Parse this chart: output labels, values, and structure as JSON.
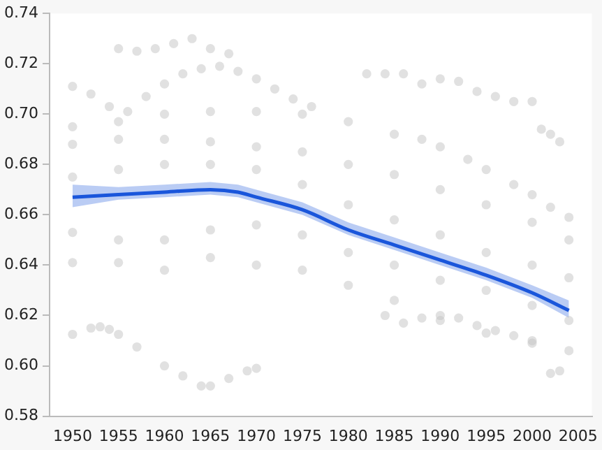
{
  "chart_data": {
    "type": "scatter",
    "xlim": [
      1947.5,
      2006.5
    ],
    "xticks": [
      1950,
      1955,
      1960,
      1965,
      1970,
      1975,
      1980,
      1985,
      1990,
      1995,
      2000,
      2005
    ],
    "ylim": [
      0.58,
      0.74
    ],
    "yticks": [
      0.58,
      {
        "value": 0.6,
        "label": "0.60"
      },
      0.62,
      0.64,
      0.66,
      0.68,
      {
        "value": 0.7,
        "label": "0.70"
      },
      0.72,
      0.74
    ],
    "series": [
      {
        "type": "scatter",
        "color": "#c4c4c4",
        "x": [
          1950,
          1952,
          1954,
          1956,
          1958,
          1960,
          1962,
          1964,
          1966,
          1968,
          1970,
          1972,
          1974,
          1976,
          1955,
          1957,
          1959,
          1961,
          1963,
          1965,
          1967,
          1982,
          1984,
          1986,
          1988,
          1990,
          1992,
          1994,
          1996,
          1998,
          2000,
          2001,
          2002,
          2003,
          1950,
          1955,
          1960,
          1965,
          1970,
          1975,
          1980,
          1985,
          1988,
          1990,
          1993,
          1995,
          1998,
          2000,
          2002,
          2004,
          1950,
          1955,
          1960,
          1965,
          1970,
          1975,
          1980,
          1985,
          1990,
          1995,
          2000,
          2004,
          1950,
          1955,
          1960,
          1965,
          1970,
          1975,
          1980,
          1985,
          1990,
          1995,
          2000,
          2004,
          1950,
          1955,
          1960,
          1965,
          1970,
          1975,
          1980,
          1985,
          1990,
          1995,
          2000,
          2004,
          1950,
          1955,
          1960,
          1965,
          1970,
          1975,
          1980,
          1985,
          1990,
          1995,
          2000,
          2004,
          1984,
          1986,
          1988,
          1990,
          1992,
          1994,
          1996,
          1998,
          2000,
          2002,
          2003,
          1950,
          1952,
          1953,
          1954,
          1955,
          1957,
          1960,
          1962,
          1964,
          1965,
          1967,
          1969,
          1970
        ],
        "values": [
          0.711,
          0.708,
          0.703,
          0.701,
          0.707,
          0.712,
          0.716,
          0.718,
          0.719,
          0.717,
          0.714,
          0.71,
          0.706,
          0.703,
          0.726,
          0.725,
          0.726,
          0.728,
          0.73,
          0.726,
          0.724,
          0.716,
          0.716,
          0.716,
          0.712,
          0.714,
          0.713,
          0.709,
          0.707,
          0.705,
          0.705,
          0.694,
          0.692,
          0.689,
          0.695,
          0.697,
          0.7,
          0.701,
          0.701,
          0.7,
          0.697,
          0.692,
          0.69,
          0.687,
          0.682,
          0.678,
          0.672,
          0.668,
          0.663,
          0.659,
          0.688,
          0.69,
          0.69,
          0.689,
          0.687,
          0.685,
          0.68,
          0.676,
          0.67,
          0.664,
          0.657,
          0.65,
          0.675,
          0.678,
          0.68,
          0.68,
          0.678,
          0.672,
          0.664,
          0.658,
          0.652,
          0.645,
          0.64,
          0.635,
          0.653,
          0.65,
          0.65,
          0.654,
          0.656,
          0.652,
          0.645,
          0.64,
          0.634,
          0.63,
          0.624,
          0.618,
          0.641,
          0.641,
          0.638,
          0.643,
          0.64,
          0.638,
          0.632,
          0.626,
          0.618,
          0.613,
          0.61,
          0.606,
          0.62,
          0.617,
          0.619,
          0.62,
          0.619,
          0.616,
          0.614,
          0.612,
          0.609,
          0.597,
          0.598,
          0.6125,
          0.615,
          0.6155,
          0.6145,
          0.6125,
          0.6075,
          0.6,
          0.596,
          0.592,
          0.592,
          0.595,
          0.598,
          0.599
        ]
      },
      {
        "type": "line",
        "color": "#1a56db",
        "x": [
          1950,
          1955,
          1960,
          1965,
          1968,
          1970,
          1975,
          1980,
          1985,
          1990,
          1995,
          2000,
          2004
        ],
        "values": [
          0.667,
          0.668,
          0.669,
          0.67,
          0.669,
          0.667,
          0.662,
          0.654,
          0.648,
          0.642,
          0.636,
          0.629,
          0.622
        ],
        "lower": [
          0.663,
          0.666,
          0.667,
          0.668,
          0.667,
          0.665,
          0.66,
          0.652,
          0.646,
          0.64,
          0.634,
          0.627,
          0.619
        ],
        "upper": [
          0.672,
          0.671,
          0.672,
          0.673,
          0.672,
          0.67,
          0.665,
          0.657,
          0.651,
          0.645,
          0.639,
          0.632,
          0.626
        ]
      }
    ]
  }
}
